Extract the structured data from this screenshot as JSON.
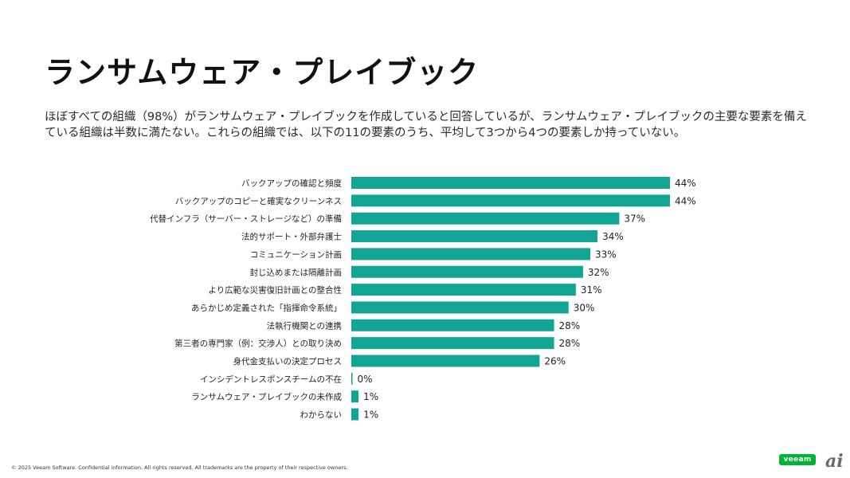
{
  "slide": {
    "title": "ランサムウェア・プレイブック",
    "description": "ほぼすべての組織（98%）がランサムウェア・プレイブックを作成していると回答しているが、ランサムウェア・プレイブックの主要な要素を備えている組織は半数に満たない。これらの組織では、以下の11の要素のうち、平均して3つから4つの要素しか持っていない。",
    "footer": "© 2025 Veeam Software. Confidential information. All rights reserved. All trademarks are the property of their respective owners.",
    "brand_logo": "veeam",
    "site_mark": "ai"
  },
  "colors": {
    "bar": "#12a594",
    "text": "#222222"
  },
  "chart_data": {
    "type": "bar",
    "orientation": "horizontal",
    "categories": [
      "バックアップの確認と頻度",
      "バックアップのコピーと確実なクリーンネス",
      "代替インフラ（サーバー・ストレージなど）の準備",
      "法的サポート・外部弁護士",
      "コミュニケーション計画",
      "封じ込めまたは隔離計画",
      "より広範な災害復旧計画との整合性",
      "あらかじめ定義された「指揮命令系統」",
      "法執行機関との連携",
      "第三者の専門家（例：交渉人）との取り決め",
      "身代金支払いの決定プロセス",
      "インシデントレスポンスチームの不在",
      "ランサムウェア・プレイブックの未作成",
      "わからない"
    ],
    "values": [
      44,
      44,
      37,
      34,
      33,
      32,
      31,
      30,
      28,
      28,
      26,
      0,
      1,
      1
    ],
    "labels": [
      "44%",
      "44%",
      "37%",
      "34%",
      "33%",
      "32%",
      "31%",
      "30%",
      "28%",
      "28%",
      "26%",
      "0%",
      "1%",
      "1%"
    ],
    "unit": "%",
    "xlim": [
      0,
      44
    ],
    "grid": false,
    "legend": "none"
  }
}
